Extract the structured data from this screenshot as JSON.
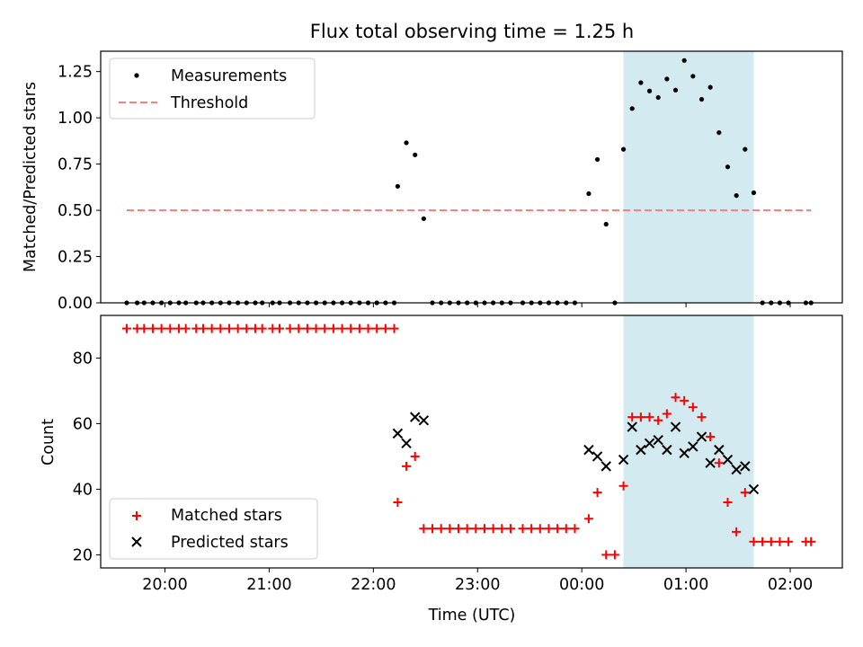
{
  "chart_data": [
    {
      "type": "scatter",
      "title": "Flux total observing time = 1.25 h",
      "ylabel": "Matched/Predicted stars",
      "xlabel": "",
      "ylim": [
        0.0,
        1.36
      ],
      "yticks": [
        "0.00",
        "0.25",
        "0.50",
        "0.75",
        "1.00",
        "1.25"
      ],
      "ytick_values": [
        0,
        0.25,
        0.5,
        0.75,
        1.0,
        1.25
      ],
      "legend_position": "top-left",
      "shaded_interval": {
        "start": "00:24",
        "end": "01:39",
        "color": "#d3eaf0"
      },
      "series": [
        {
          "name": "Measurements",
          "color": "#000000",
          "marker": "dot",
          "points": [
            [
              "19:38",
              0
            ],
            [
              "19:44",
              0
            ],
            [
              "19:48",
              0
            ],
            [
              "19:53",
              0
            ],
            [
              "19:58",
              0
            ],
            [
              "20:03",
              0
            ],
            [
              "20:08",
              0
            ],
            [
              "20:12",
              0
            ],
            [
              "20:18",
              0
            ],
            [
              "20:22",
              0
            ],
            [
              "20:27",
              0
            ],
            [
              "20:32",
              0
            ],
            [
              "20:37",
              0
            ],
            [
              "20:42",
              0
            ],
            [
              "20:47",
              0
            ],
            [
              "20:52",
              0
            ],
            [
              "20:56",
              0
            ],
            [
              "21:02",
              0
            ],
            [
              "21:06",
              0
            ],
            [
              "21:12",
              0
            ],
            [
              "21:17",
              0
            ],
            [
              "21:22",
              0
            ],
            [
              "21:27",
              0
            ],
            [
              "21:32",
              0
            ],
            [
              "21:37",
              0
            ],
            [
              "21:42",
              0
            ],
            [
              "21:47",
              0
            ],
            [
              "21:52",
              0
            ],
            [
              "21:57",
              0
            ],
            [
              "22:02",
              0
            ],
            [
              "22:07",
              0
            ],
            [
              "22:12",
              0
            ],
            [
              "22:14",
              0.63
            ],
            [
              "22:19",
              0.865
            ],
            [
              "22:24",
              0.8
            ],
            [
              "22:29",
              0.455
            ],
            [
              "22:34",
              0
            ],
            [
              "22:39",
              0
            ],
            [
              "22:44",
              0
            ],
            [
              "22:49",
              0
            ],
            [
              "22:54",
              0
            ],
            [
              "22:59",
              0
            ],
            [
              "23:04",
              0
            ],
            [
              "23:09",
              0
            ],
            [
              "23:14",
              0
            ],
            [
              "23:19",
              0
            ],
            [
              "23:26",
              0
            ],
            [
              "23:31",
              0
            ],
            [
              "23:36",
              0
            ],
            [
              "23:41",
              0
            ],
            [
              "23:46",
              0
            ],
            [
              "23:51",
              0
            ],
            [
              "23:56",
              0
            ],
            [
              "00:04",
              0.59
            ],
            [
              "00:09",
              0.775
            ],
            [
              "00:14",
              0.425
            ],
            [
              "00:19",
              0
            ],
            [
              "00:24",
              0.83
            ],
            [
              "00:29",
              1.05
            ],
            [
              "00:34",
              1.19
            ],
            [
              "00:39",
              1.145
            ],
            [
              "00:44",
              1.11
            ],
            [
              "00:49",
              1.21
            ],
            [
              "00:54",
              1.15
            ],
            [
              "00:59",
              1.31
            ],
            [
              "01:04",
              1.225
            ],
            [
              "01:09",
              1.1
            ],
            [
              "01:14",
              1.165
            ],
            [
              "01:19",
              0.92
            ],
            [
              "01:24",
              0.735
            ],
            [
              "01:29",
              0.58
            ],
            [
              "01:34",
              0.83
            ],
            [
              "01:39",
              0.595
            ],
            [
              "01:44",
              0
            ],
            [
              "01:49",
              0
            ],
            [
              "01:54",
              0
            ],
            [
              "01:59",
              0
            ],
            [
              "02:09",
              0
            ],
            [
              "02:12",
              0
            ]
          ]
        },
        {
          "name": "Threshold",
          "color": "#ff7f7f",
          "style": "dashed",
          "x_range": [
            "19:38",
            "02:12"
          ],
          "value": 0.5
        }
      ]
    },
    {
      "type": "scatter",
      "title": "",
      "xlabel": "Time (UTC)",
      "ylabel": "Count",
      "ylim": [
        16,
        93
      ],
      "yticks": [
        "20",
        "40",
        "60",
        "80"
      ],
      "ytick_values": [
        20,
        40,
        60,
        80
      ],
      "xlim": [
        "19:23",
        "02:30"
      ],
      "xticks": [
        "20:00",
        "21:00",
        "22:00",
        "23:00",
        "00:00",
        "01:00",
        "02:00"
      ],
      "legend_position": "bottom-left",
      "shaded_interval": {
        "start": "00:24",
        "end": "01:39",
        "color": "#d3eaf0"
      },
      "series": [
        {
          "name": "Matched stars",
          "color": "#ff0000",
          "marker": "plus",
          "points": [
            [
              "19:38",
              89
            ],
            [
              "19:44",
              89
            ],
            [
              "19:48",
              89
            ],
            [
              "19:53",
              89
            ],
            [
              "19:58",
              89
            ],
            [
              "20:03",
              89
            ],
            [
              "20:08",
              89
            ],
            [
              "20:12",
              89
            ],
            [
              "20:18",
              89
            ],
            [
              "20:22",
              89
            ],
            [
              "20:27",
              89
            ],
            [
              "20:32",
              89
            ],
            [
              "20:37",
              89
            ],
            [
              "20:42",
              89
            ],
            [
              "20:47",
              89
            ],
            [
              "20:52",
              89
            ],
            [
              "20:56",
              89
            ],
            [
              "21:02",
              89
            ],
            [
              "21:06",
              89
            ],
            [
              "21:12",
              89
            ],
            [
              "21:17",
              89
            ],
            [
              "21:22",
              89
            ],
            [
              "21:27",
              89
            ],
            [
              "21:32",
              89
            ],
            [
              "21:37",
              89
            ],
            [
              "21:42",
              89
            ],
            [
              "21:47",
              89
            ],
            [
              "21:52",
              89
            ],
            [
              "21:57",
              89
            ],
            [
              "22:02",
              89
            ],
            [
              "22:07",
              89
            ],
            [
              "22:12",
              89
            ],
            [
              "22:14",
              36
            ],
            [
              "22:19",
              47
            ],
            [
              "22:24",
              50
            ],
            [
              "22:29",
              28
            ],
            [
              "22:34",
              28
            ],
            [
              "22:39",
              28
            ],
            [
              "22:44",
              28
            ],
            [
              "22:49",
              28
            ],
            [
              "22:54",
              28
            ],
            [
              "22:59",
              28
            ],
            [
              "23:04",
              28
            ],
            [
              "23:09",
              28
            ],
            [
              "23:14",
              28
            ],
            [
              "23:19",
              28
            ],
            [
              "23:26",
              28
            ],
            [
              "23:31",
              28
            ],
            [
              "23:36",
              28
            ],
            [
              "23:41",
              28
            ],
            [
              "23:46",
              28
            ],
            [
              "23:51",
              28
            ],
            [
              "23:56",
              28
            ],
            [
              "00:04",
              31
            ],
            [
              "00:09",
              39
            ],
            [
              "00:14",
              20
            ],
            [
              "00:19",
              20
            ],
            [
              "00:24",
              41
            ],
            [
              "00:29",
              62
            ],
            [
              "00:34",
              62
            ],
            [
              "00:39",
              62
            ],
            [
              "00:44",
              61
            ],
            [
              "00:49",
              63
            ],
            [
              "00:54",
              68
            ],
            [
              "00:59",
              67
            ],
            [
              "01:04",
              65
            ],
            [
              "01:09",
              62
            ],
            [
              "01:14",
              56
            ],
            [
              "01:19",
              48
            ],
            [
              "01:24",
              36
            ],
            [
              "01:29",
              27
            ],
            [
              "01:34",
              39
            ],
            [
              "01:39",
              24
            ],
            [
              "01:44",
              24
            ],
            [
              "01:49",
              24
            ],
            [
              "01:54",
              24
            ],
            [
              "01:59",
              24
            ],
            [
              "02:09",
              24
            ],
            [
              "02:12",
              24
            ]
          ]
        },
        {
          "name": "Predicted stars",
          "color": "#000000",
          "marker": "x",
          "points": [
            [
              "22:14",
              57
            ],
            [
              "22:19",
              54
            ],
            [
              "22:24",
              62
            ],
            [
              "22:29",
              61
            ],
            [
              "00:04",
              52
            ],
            [
              "00:09",
              50
            ],
            [
              "00:14",
              47
            ],
            [
              "00:24",
              49
            ],
            [
              "00:29",
              59
            ],
            [
              "00:34",
              52
            ],
            [
              "00:39",
              54
            ],
            [
              "00:44",
              55
            ],
            [
              "00:49",
              52
            ],
            [
              "00:54",
              59
            ],
            [
              "00:59",
              51
            ],
            [
              "01:04",
              53
            ],
            [
              "01:09",
              56
            ],
            [
              "01:14",
              48
            ],
            [
              "01:19",
              52
            ],
            [
              "01:24",
              49
            ],
            [
              "01:29",
              46
            ],
            [
              "01:34",
              47
            ],
            [
              "01:39",
              40
            ]
          ]
        }
      ]
    }
  ]
}
